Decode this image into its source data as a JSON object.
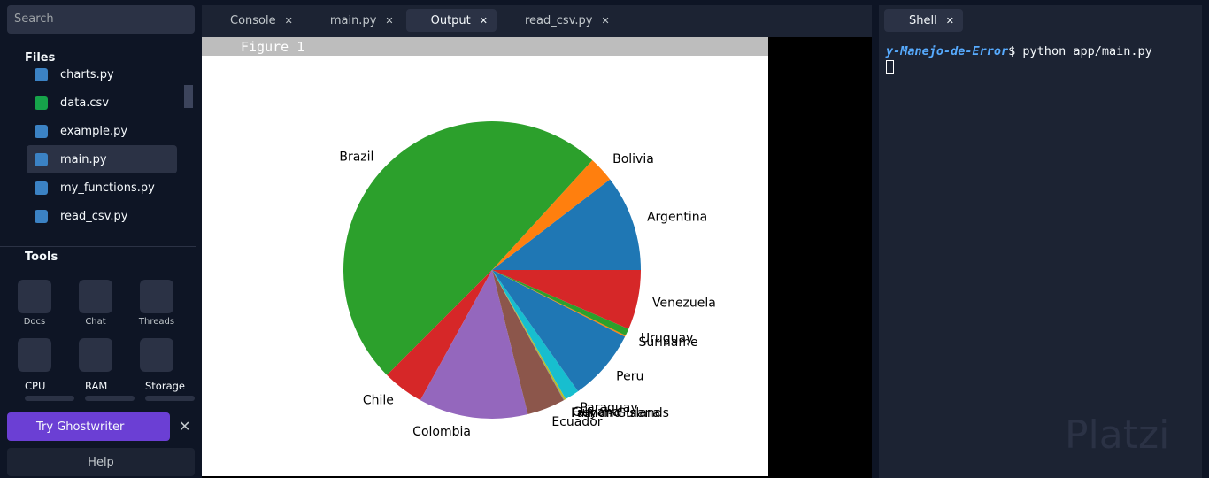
{
  "sidebar": {
    "search": "Search",
    "files_header": "Files",
    "files": [
      "charts.py",
      "data.csv",
      "example.py",
      "main.py",
      "my_functions.py",
      "read_csv.py"
    ],
    "tools_header": "Tools",
    "tools": [
      "Docs",
      "Chat",
      "Threads"
    ],
    "resources": [
      "CPU",
      "RAM",
      "Storage"
    ],
    "ghostwriter": "Try Ghostwriter",
    "help": "Help"
  },
  "tabs": [
    "Console",
    "main.py",
    "Output",
    "read_csv.py"
  ],
  "figure_title": "Figure 1",
  "shell": {
    "tab": "Shell",
    "prompt": "y-Manejo-de-Error",
    "command": "$ python app/main.py"
  },
  "watermark": "Platzi",
  "chart_data": {
    "type": "pie",
    "categories": [
      "Argentina",
      "Bolivia",
      "Brazil",
      "Chile",
      "Colombia",
      "Ecuador",
      "Falkland Islands",
      "French Guiana",
      "Guyana",
      "Paraguay",
      "Peru",
      "Suriname",
      "Uruguay",
      "Venezuela"
    ],
    "values": [
      45.5,
      12.2,
      215,
      19.6,
      51.9,
      18,
      0.004,
      0.3,
      0.8,
      6.8,
      34,
      0.6,
      3.4,
      28.3
    ],
    "colors": [
      "#1f77b4",
      "#ff7f0e",
      "#2ca02c",
      "#d62728",
      "#9467bd",
      "#8c564b",
      "#e377c2",
      "#7f7f7f",
      "#bcbd22",
      "#17becf",
      "#1f77b4",
      "#ff7f0e",
      "#2ca02c",
      "#d62728"
    ]
  }
}
